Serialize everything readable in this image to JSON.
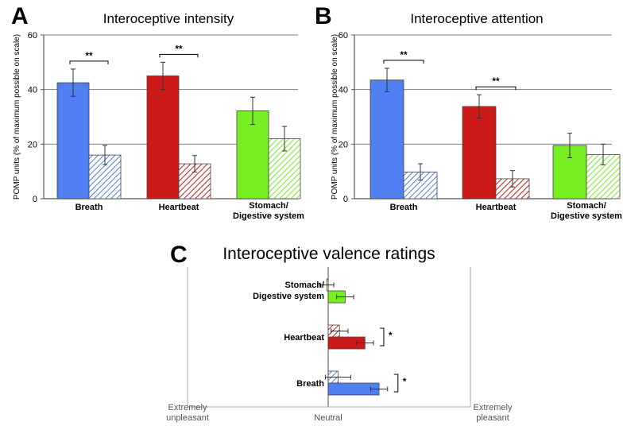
{
  "colors": {
    "breath": "#4f7ff0",
    "heartbeat": "#cc1a1a",
    "stomach": "#77ee22",
    "grid": "#7f7f7f",
    "axis": "#555555"
  },
  "chart_data": [
    {
      "panel": "A",
      "type": "bar",
      "title": "Interoceptive intensity",
      "ylabel": "POMP units (% of maximum possible on scale)",
      "ylim": [
        0,
        60
      ],
      "yticks": [
        0,
        20,
        40,
        60
      ],
      "grid": true,
      "categories": [
        "Breath",
        "Heartbeat",
        "Stomach/\nDigestive system"
      ],
      "series": [
        {
          "pattern": "solid",
          "values": [
            42.5,
            45.0,
            32.2
          ],
          "errors": [
            5.0,
            5.0,
            5.0
          ]
        },
        {
          "pattern": "hatched",
          "values": [
            16.0,
            12.8,
            22.0
          ],
          "errors": [
            3.5,
            3.0,
            4.5
          ]
        }
      ],
      "significance": [
        {
          "category": "Breath",
          "label": "**"
        },
        {
          "category": "Heartbeat",
          "label": "**"
        }
      ]
    },
    {
      "panel": "B",
      "type": "bar",
      "title": "Interoceptive attention",
      "ylabel": "POMP units (% of maximum possible on scale)",
      "ylim": [
        0,
        60
      ],
      "yticks": [
        0,
        20,
        40,
        60
      ],
      "grid": true,
      "categories": [
        "Breath",
        "Heartbeat",
        "Stomach/\nDigestive system"
      ],
      "series": [
        {
          "pattern": "solid",
          "values": [
            43.5,
            33.8,
            19.5
          ],
          "errors": [
            4.3,
            4.3,
            4.5
          ]
        },
        {
          "pattern": "hatched",
          "values": [
            9.8,
            7.3,
            16.2
          ],
          "errors": [
            3.0,
            3.0,
            3.8
          ]
        }
      ],
      "significance": [
        {
          "category": "Breath",
          "label": "**"
        },
        {
          "category": "Heartbeat",
          "label": "**"
        }
      ]
    },
    {
      "panel": "C",
      "type": "bar",
      "orientation": "horizontal",
      "title": "Interoceptive valence ratings",
      "xlim": [
        -100,
        100
      ],
      "x_anchors": {
        "left": "Extremely\nunpleasant",
        "center": "Neutral",
        "right": "Extremely\npleasant"
      },
      "grid": true,
      "categories": [
        "Stomach/\nDigestive system",
        "Heartbeat",
        "Breath"
      ],
      "series": [
        {
          "pattern": "hatched",
          "values": [
            -1.0,
            8.0,
            7.0
          ],
          "errors": [
            5.0,
            6.0,
            9.0
          ]
        },
        {
          "pattern": "solid",
          "values": [
            12.0,
            26.0,
            36.0
          ],
          "errors": [
            6.0,
            6.0,
            6.0
          ]
        }
      ],
      "significance": [
        {
          "category": "Heartbeat",
          "label": "*"
        },
        {
          "category": "Breath",
          "label": "*"
        }
      ]
    }
  ]
}
